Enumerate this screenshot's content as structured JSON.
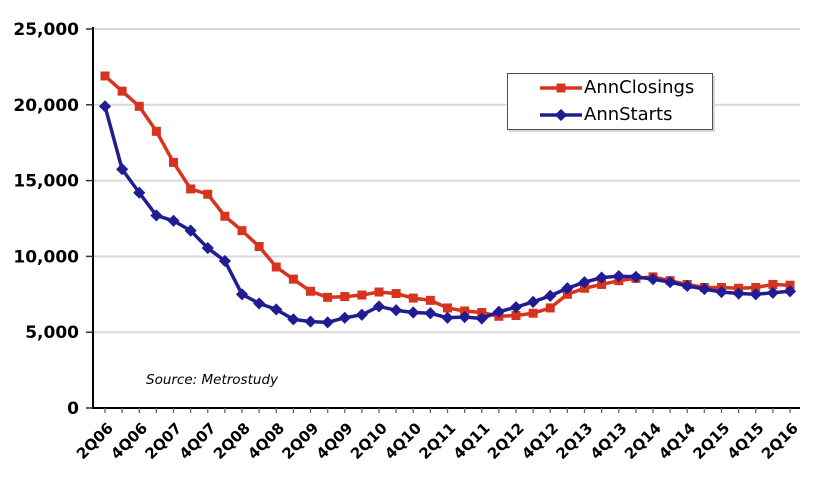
{
  "chart_data": {
    "type": "line",
    "title": "",
    "xlabel": "",
    "ylabel": "",
    "ylim": [
      0,
      25000
    ],
    "y_tick_labels": [
      "0",
      "5,000",
      "10,000",
      "15,000",
      "20,000",
      "25,000"
    ],
    "x_tick_labels_shown": [
      "2Q06",
      "4Q06",
      "2Q07",
      "4Q07",
      "2Q08",
      "4Q08",
      "2Q09",
      "4Q09",
      "2Q10",
      "4Q10",
      "2Q11",
      "4Q11",
      "2Q12",
      "4Q12",
      "2Q13",
      "4Q13",
      "2Q14",
      "4Q14",
      "2Q15",
      "4Q15",
      "2Q16"
    ],
    "categories": [
      "2Q06",
      "3Q06",
      "4Q06",
      "1Q07",
      "2Q07",
      "3Q07",
      "4Q07",
      "1Q08",
      "2Q08",
      "3Q08",
      "4Q08",
      "1Q09",
      "2Q09",
      "3Q09",
      "4Q09",
      "1Q10",
      "2Q10",
      "3Q10",
      "4Q10",
      "1Q11",
      "2Q11",
      "3Q11",
      "4Q11",
      "1Q12",
      "2Q12",
      "3Q12",
      "4Q12",
      "1Q13",
      "2Q13",
      "3Q13",
      "4Q13",
      "1Q14",
      "2Q14",
      "3Q14",
      "4Q14",
      "1Q15",
      "2Q15",
      "3Q15",
      "4Q15",
      "1Q16",
      "2Q16"
    ],
    "series": [
      {
        "name": "AnnClosings",
        "marker": "square",
        "color": "#d6341f",
        "values": [
          21900,
          20900,
          19900,
          18250,
          16200,
          14450,
          14100,
          12650,
          11700,
          10650,
          9300,
          8500,
          7700,
          7300,
          7350,
          7450,
          7650,
          7550,
          7250,
          7100,
          6600,
          6400,
          6300,
          6050,
          6100,
          6250,
          6600,
          7500,
          7900,
          8150,
          8400,
          8550,
          8650,
          8400,
          8150,
          7950,
          7950,
          7900,
          7950,
          8150,
          8100
        ]
      },
      {
        "name": "AnnStarts",
        "marker": "diamond",
        "color": "#201d93",
        "values": [
          19900,
          15750,
          14200,
          12700,
          12350,
          11700,
          10550,
          9700,
          7500,
          6900,
          6500,
          5850,
          5700,
          5650,
          5950,
          6150,
          6700,
          6450,
          6300,
          6250,
          5950,
          6000,
          5900,
          6350,
          6650,
          7000,
          7400,
          7900,
          8300,
          8600,
          8700,
          8650,
          8500,
          8300,
          8050,
          7850,
          7650,
          7550,
          7500,
          7600,
          7700
        ]
      }
    ],
    "grid": "horizontal",
    "grid_color": "#d9d9d9",
    "legend_position": "inside-top-right",
    "annotation": "Source: Metrostudy"
  }
}
